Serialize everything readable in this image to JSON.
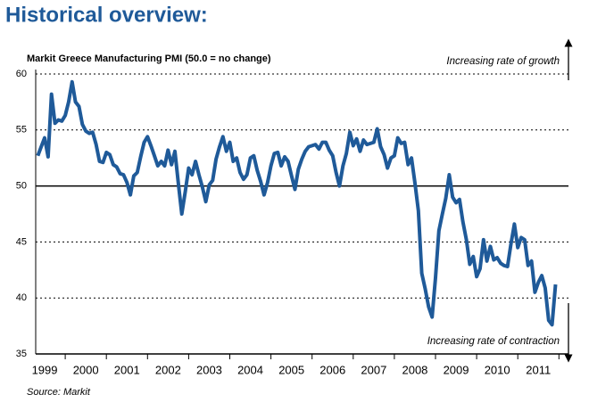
{
  "chart_data": {
    "type": "line",
    "title": "Historical overview:",
    "subtitle": "Markit Greece Manufacturing PMI (50.0 = no change)",
    "source": "Source: Markit",
    "annotations": [
      "Increasing rate of growth",
      "Increasing rate of contraction"
    ],
    "xticks": [
      "1999",
      "2000",
      "2001",
      "2002",
      "2003",
      "2004",
      "2005",
      "2006",
      "2007",
      "2008",
      "2009",
      "2010",
      "2011"
    ],
    "first_month": 4,
    "series": [
      {
        "color": "#1f5a99",
        "values": [
          52.7,
          53.5,
          54.3,
          52.6,
          58.2,
          55.6,
          55.9,
          55.8,
          56.3,
          57.5,
          59.3,
          57.5,
          57.1,
          55.5,
          54.9,
          54.7,
          54.8,
          53.7,
          52.2,
          52.1,
          53.0,
          52.8,
          51.9,
          51.7,
          51.1,
          51.0,
          50.3,
          49.2,
          50.9,
          51.2,
          52.6,
          53.9,
          54.4,
          53.6,
          52.7,
          51.8,
          52.2,
          51.8,
          53.2,
          51.9,
          53.1,
          50.2,
          47.5,
          49.5,
          51.6,
          51.0,
          52.2,
          51.0,
          49.9,
          48.6,
          50.1,
          50.5,
          52.4,
          53.5,
          54.4,
          53.1,
          53.9,
          52.2,
          52.5,
          51.2,
          50.6,
          51.0,
          52.5,
          52.7,
          51.4,
          50.4,
          49.2,
          50.3,
          51.8,
          52.9,
          53.0,
          51.8,
          52.6,
          52.2,
          50.9,
          49.7,
          51.5,
          52.4,
          53.1,
          53.5,
          53.6,
          53.7,
          53.3,
          53.9,
          53.9,
          53.2,
          52.7,
          51.2,
          50.0,
          51.8,
          52.9,
          54.8,
          53.6,
          54.2,
          53.1,
          54.1,
          53.7,
          53.8,
          53.9,
          55.1,
          53.5,
          52.8,
          51.6,
          52.5,
          52.7,
          54.3,
          53.8,
          53.9,
          51.9,
          52.5,
          50.3,
          47.8,
          42.2,
          40.8,
          39.2,
          38.3,
          41.8,
          46.0,
          47.5,
          48.9,
          51.0,
          49.0,
          48.5,
          48.8,
          46.8,
          45.2,
          43.0,
          43.7,
          41.9,
          42.6,
          45.2,
          43.3,
          44.6,
          43.4,
          43.6,
          43.1,
          42.9,
          42.8,
          44.8,
          46.6,
          44.5,
          45.4,
          45.2,
          42.9,
          43.3,
          40.5,
          41.4,
          42.0,
          40.9,
          38.0,
          37.6,
          41.2
        ]
      }
    ],
    "ylim": [
      35,
      60
    ],
    "yticks": [
      35,
      40,
      45,
      50,
      55,
      60
    ],
    "reference_line": 50,
    "grid": true
  }
}
